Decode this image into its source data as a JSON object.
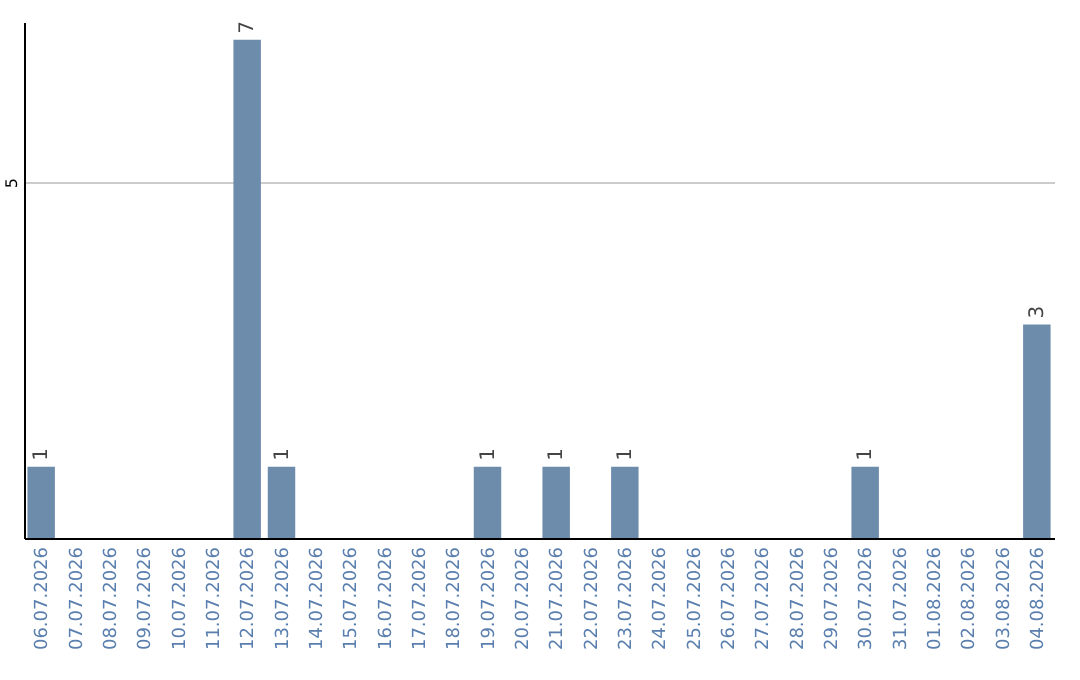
{
  "chart_data": {
    "type": "bar",
    "categories": [
      "06.07.2026",
      "07.07.2026",
      "08.07.2026",
      "09.07.2026",
      "10.07.2026",
      "11.07.2026",
      "12.07.2026",
      "13.07.2026",
      "14.07.2026",
      "15.07.2026",
      "16.07.2026",
      "17.07.2026",
      "18.07.2026",
      "19.07.2026",
      "20.07.2026",
      "21.07.2026",
      "22.07.2026",
      "23.07.2026",
      "24.07.2026",
      "25.07.2026",
      "26.07.2026",
      "27.07.2026",
      "28.07.2026",
      "29.07.2026",
      "30.07.2026",
      "31.07.2026",
      "01.08.2026",
      "02.08.2026",
      "03.08.2026",
      "04.08.2026"
    ],
    "values": [
      1,
      0,
      0,
      0,
      0,
      0,
      7,
      1,
      0,
      0,
      0,
      0,
      0,
      1,
      0,
      1,
      0,
      1,
      0,
      0,
      0,
      0,
      0,
      0,
      1,
      0,
      0,
      0,
      0,
      3
    ],
    "color": "#6d8cab",
    "value_labels": [
      "1",
      null,
      null,
      null,
      null,
      null,
      "7",
      "1",
      null,
      null,
      null,
      null,
      null,
      "1",
      null,
      "1",
      null,
      "1",
      null,
      null,
      null,
      null,
      null,
      null,
      "1",
      null,
      null,
      null,
      null,
      "3"
    ],
    "ylim": [
      0,
      7.25
    ],
    "yticks": [
      5
    ],
    "grid": "y"
  }
}
